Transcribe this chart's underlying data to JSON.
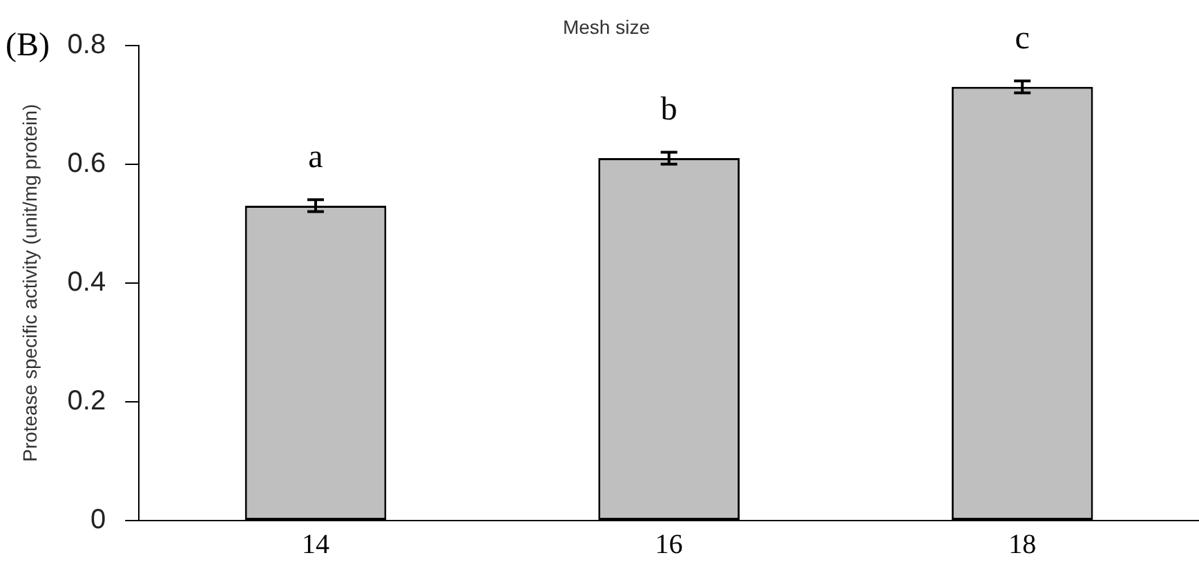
{
  "chart_data": {
    "type": "bar",
    "xlabel": "Mesh size",
    "ylabel": "Protease specific activity (unit/mg protein)",
    "categories": [
      "14",
      "16",
      "18"
    ],
    "values": [
      0.53,
      0.61,
      0.73
    ],
    "errors": [
      0.01,
      0.01,
      0.01
    ],
    "color": "#bfbfbf",
    "ylim": [
      0,
      0.8
    ],
    "yticks": [
      0,
      0.2,
      0.4,
      0.6,
      0.8
    ],
    "grid": false,
    "legend": false,
    "annotations": [
      "(B)",
      {
        "text": "a",
        "x": "14",
        "y": 0.53
      },
      {
        "text": "b",
        "x": "16",
        "y": 0.61
      },
      {
        "text": "c",
        "x": "18",
        "y": 0.73
      }
    ]
  }
}
